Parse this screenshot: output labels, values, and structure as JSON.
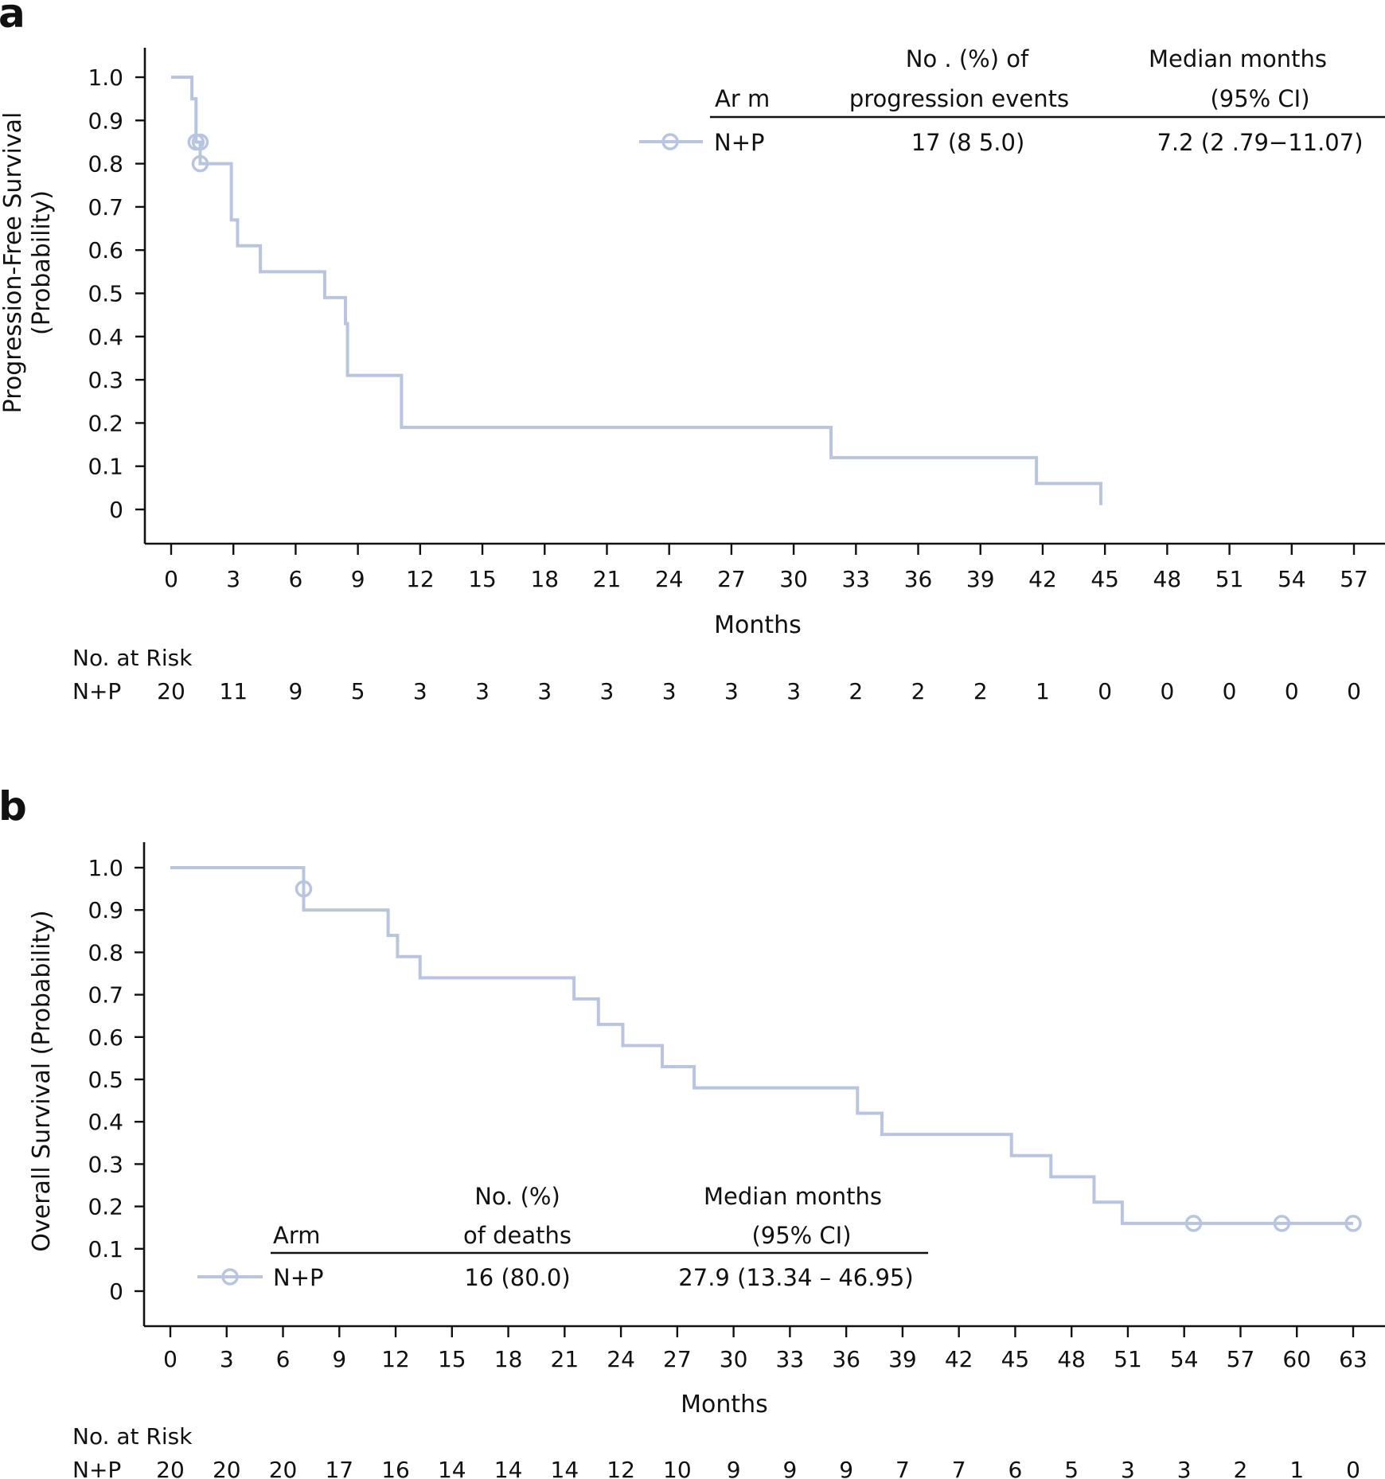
{
  "chart_data": [
    {
      "type": "line",
      "panel_label": "a",
      "title": "",
      "xlabel": "Months",
      "ylabel": "Progression-Free Survival",
      "ylabel2": "(Probability)",
      "xlim": [
        0,
        57
      ],
      "ylim": [
        0,
        1
      ],
      "x_ticks": [
        0,
        3,
        6,
        9,
        12,
        15,
        18,
        21,
        24,
        27,
        30,
        33,
        36,
        39,
        42,
        45,
        48,
        51,
        54,
        57
      ],
      "y_ticks": [
        1.0,
        0.9,
        0.8,
        0.7,
        0.6,
        0.5,
        0.4,
        0.3,
        0.2,
        0.1,
        0
      ],
      "y_tick_labels": [
        "1.0",
        "0.9",
        "0.8",
        "0.7",
        "0.6",
        "0.5",
        "0.4",
        "0.3",
        "0.2",
        "0.1",
        "0"
      ],
      "grid": false,
      "series": [
        {
          "name": "N+P",
          "color": "#b7c4e2",
          "steps": [
            [
              0,
              1.0
            ],
            [
              1.0,
              0.95
            ],
            [
              1.2,
              0.85
            ],
            [
              1.4,
              0.8
            ],
            [
              2.9,
              0.67
            ],
            [
              3.2,
              0.61
            ],
            [
              4.3,
              0.55
            ],
            [
              7.4,
              0.49
            ],
            [
              8.4,
              0.43
            ],
            [
              8.5,
              0.31
            ],
            [
              11.1,
              0.19
            ],
            [
              31.8,
              0.12
            ],
            [
              41.7,
              0.06
            ],
            [
              44.8,
              0.01
            ]
          ],
          "end_x": 44.8,
          "censored": [
            [
              1.2,
              0.85
            ],
            [
              1.4,
              0.85
            ],
            [
              1.4,
              0.8
            ]
          ]
        }
      ],
      "legend": {
        "placement": "top-right",
        "header": {
          "arm": "Ar m",
          "events_line1": "No . (%) of",
          "events_line2": "progression events",
          "median_line1": "Median   months",
          "median_line2": "(95%  CI)"
        },
        "rows": [
          {
            "arm": "N+P",
            "events": "17 (8 5.0)",
            "median": "7.2 (2 .79−11.07)"
          }
        ]
      },
      "risk_table": {
        "title": "No. at Risk",
        "rows": [
          {
            "label": "N+P",
            "counts": [
              "20",
              "11",
              "9",
              "5",
              "3",
              "3",
              "3",
              "3",
              "3",
              "3",
              "3",
              "2",
              "2",
              "2",
              "1",
              "0",
              "0",
              "0",
              "0",
              "0"
            ]
          }
        ]
      }
    },
    {
      "type": "line",
      "panel_label": "b",
      "title": "",
      "xlabel": "Months",
      "ylabel": "Overall Survival  (Probability)",
      "xlim": [
        0,
        63
      ],
      "ylim": [
        0,
        1
      ],
      "x_ticks": [
        0,
        3,
        6,
        9,
        12,
        15,
        18,
        21,
        24,
        27,
        30,
        33,
        36,
        39,
        42,
        45,
        48,
        51,
        54,
        57,
        60,
        63
      ],
      "y_ticks": [
        1.0,
        0.9,
        0.8,
        0.7,
        0.6,
        0.5,
        0.4,
        0.3,
        0.2,
        0.1,
        0
      ],
      "y_tick_labels": [
        "1.0",
        "0.9",
        "0.8",
        "0.7",
        "0.6",
        "0.5",
        "0.4",
        "0.3",
        "0.2",
        "0.1",
        "0"
      ],
      "grid": false,
      "series": [
        {
          "name": "N+P",
          "color": "#b7c4e2",
          "steps": [
            [
              0,
              1.0
            ],
            [
              7.1,
              0.9
            ],
            [
              11.6,
              0.84
            ],
            [
              12.1,
              0.79
            ],
            [
              13.3,
              0.74
            ],
            [
              21.5,
              0.69
            ],
            [
              22.8,
              0.63
            ],
            [
              24.1,
              0.58
            ],
            [
              26.2,
              0.53
            ],
            [
              27.9,
              0.48
            ],
            [
              36.6,
              0.42
            ],
            [
              37.9,
              0.37
            ],
            [
              44.8,
              0.32
            ],
            [
              46.9,
              0.27
            ],
            [
              49.2,
              0.21
            ],
            [
              50.7,
              0.16
            ]
          ],
          "end_x": 63,
          "censored": [
            [
              7.1,
              0.95
            ],
            [
              54.5,
              0.16
            ],
            [
              59.2,
              0.16
            ],
            [
              63,
              0.16
            ]
          ]
        }
      ],
      "legend": {
        "placement": "bottom-left",
        "header": {
          "arm": "Arm",
          "events_line1": "No. (%)",
          "events_line2": "of deaths",
          "median_line1": "Median months",
          "median_line2": "(95% CI)"
        },
        "rows": [
          {
            "arm": "N+P",
            "events": "16 (80.0)",
            "median": "27.9 (13.34 – 46.95)"
          }
        ]
      },
      "risk_table": {
        "title": "No. at Risk",
        "rows": [
          {
            "label": "N+P",
            "counts": [
              "20",
              "20",
              "20",
              "17",
              "16",
              "14",
              "14",
              "14",
              "12",
              "10",
              "9",
              "9",
              "9",
              "7",
              "7",
              "6",
              "5",
              "3",
              "3",
              "2",
              "1",
              "0"
            ]
          }
        ]
      }
    }
  ]
}
